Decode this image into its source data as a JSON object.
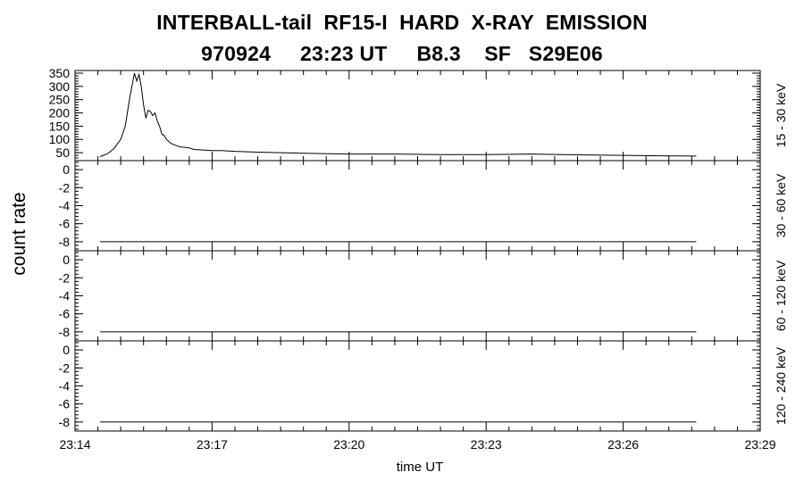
{
  "title_line1": "INTERBALL-tail  RF15-I  HARD  X-RAY  EMISSION",
  "title_line2": "970924     23:23 UT     B8.3    SF   S29E06",
  "chart_data": {
    "type": "line",
    "ylabel": "count rate",
    "xlabel": "time UT",
    "x_ticks": [
      "23:14",
      "23:17",
      "23:20",
      "23:23",
      "23:26",
      "23:29"
    ],
    "x_tick_minutes": [
      0,
      3,
      6,
      9,
      12,
      15
    ],
    "x_range_minutes_after_2314": [
      0,
      15
    ],
    "x_minor_tick_step_minutes": 0.5,
    "panels": [
      {
        "band": "15 - 30 keV",
        "ylim": [
          20,
          360
        ],
        "y_ticks": [
          50,
          100,
          150,
          200,
          250,
          300,
          350
        ],
        "y_minor_step": 10,
        "series": {
          "x_minutes": [
            0.55,
            0.7,
            0.85,
            1.0,
            1.1,
            1.2,
            1.3,
            1.35,
            1.4,
            1.45,
            1.5,
            1.55,
            1.6,
            1.65,
            1.7,
            1.75,
            1.8,
            1.85,
            1.9,
            1.95,
            2.0,
            2.1,
            2.2,
            2.3,
            2.4,
            2.5,
            2.6,
            2.8,
            3.0,
            3.2,
            3.5,
            4.0,
            4.5,
            5.0,
            6.0,
            7.0,
            8.0,
            9.0,
            10.0,
            11.0,
            12.0,
            13.0,
            13.6
          ],
          "values": [
            35,
            45,
            65,
            100,
            150,
            260,
            350,
            320,
            345,
            300,
            230,
            180,
            210,
            205,
            190,
            200,
            170,
            150,
            120,
            115,
            100,
            85,
            78,
            72,
            70,
            68,
            62,
            60,
            58,
            58,
            55,
            52,
            50,
            48,
            45,
            45,
            43,
            43,
            45,
            42,
            40,
            38,
            37
          ]
        }
      },
      {
        "band": "30 - 60 keV",
        "ylim": [
          -9,
          1
        ],
        "y_ticks": [
          0,
          -2,
          -4,
          -6,
          -8
        ],
        "y_minor_step": 0.4,
        "series": {
          "x_minutes": [
            0.55,
            13.6
          ],
          "values": [
            -8,
            -8
          ]
        }
      },
      {
        "band": "60 - 120 keV",
        "ylim": [
          -9,
          1
        ],
        "y_ticks": [
          0,
          -2,
          -4,
          -6,
          -8
        ],
        "y_minor_step": 0.4,
        "series": {
          "x_minutes": [
            0.55,
            13.6
          ],
          "values": [
            -8,
            -8
          ]
        }
      },
      {
        "band": "120 - 240 keV",
        "ylim": [
          -9,
          1
        ],
        "y_ticks": [
          0,
          -2,
          -4,
          -6,
          -8
        ],
        "y_minor_step": 0.4,
        "series": {
          "x_minutes": [
            0.55,
            13.6
          ],
          "values": [
            -8,
            -8
          ]
        }
      }
    ]
  }
}
